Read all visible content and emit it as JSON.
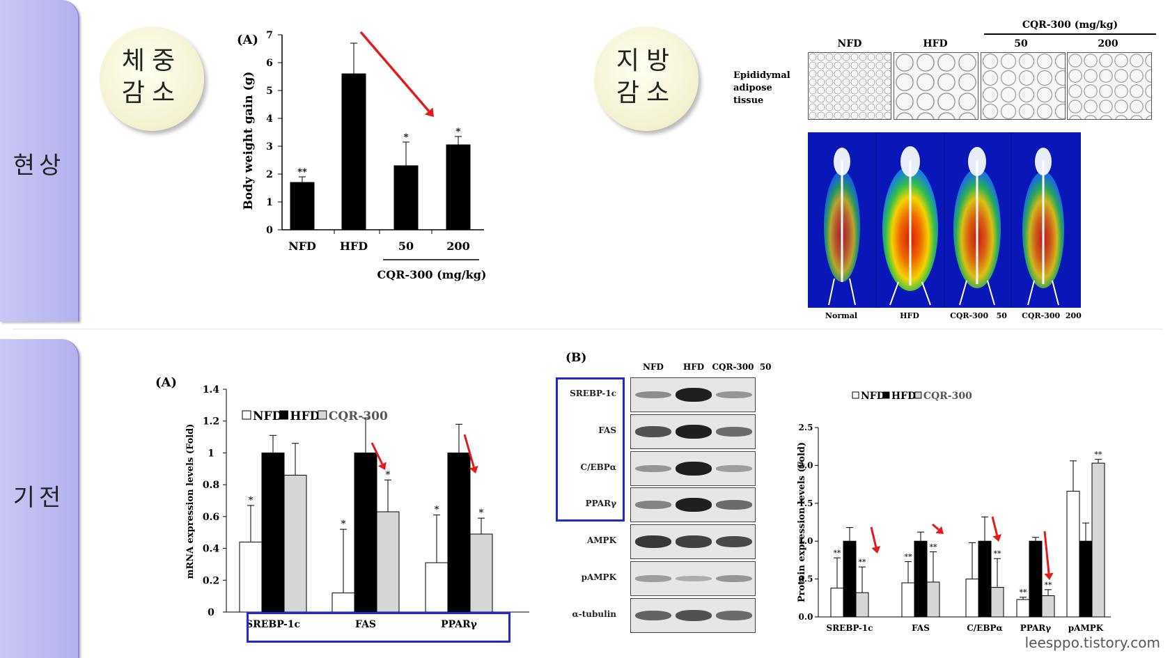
{
  "sections": {
    "phenomenon": "현상",
    "mechanism": "기전"
  },
  "circles": {
    "weight_loss": {
      "line1": "체중",
      "line2": "감소"
    },
    "fat_loss": {
      "line1": "지방",
      "line2": "감소"
    }
  },
  "weight_chart": {
    "panel_label": "(A)",
    "ylabel": "Body weight gain (g)",
    "group_label": "CQR-300 (mg/kg)",
    "yticks": [
      "0",
      "1",
      "2",
      "3",
      "4",
      "5",
      "6",
      "7"
    ]
  },
  "histology": {
    "group_label": "CQR-300 (mg/kg)",
    "columns": [
      "NFD",
      "HFD",
      "50",
      "200"
    ],
    "tissue_label": [
      "Epididymal",
      "adipose",
      "tissue"
    ],
    "ct_labels": [
      "Normal",
      "HFD",
      "CQR-300   50",
      "CQR-300  200"
    ]
  },
  "mrna_chart": {
    "panel_label": "(A)",
    "ylabel": "mRNA expression levels (Fold)",
    "legend": [
      "NFD",
      "HFD",
      "CQR-300"
    ],
    "yticks": [
      "0",
      "0.2",
      "0.4",
      "0.6",
      "0.8",
      "1",
      "1.2",
      "1.4"
    ]
  },
  "western": {
    "panel_label": "(B)",
    "headers": [
      "NFD",
      "HFD",
      "CQR-300  50"
    ],
    "rows": [
      "SREBP-1c",
      "FAS",
      "C/EBPα",
      "PPARγ",
      "AMPK",
      "pAMPK",
      "α-tubulin"
    ]
  },
  "protein_chart": {
    "ylabel": "Protein expression levels (Fold)",
    "legend": [
      "NFD",
      "HFD",
      "CQR-300"
    ],
    "yticks": [
      "0.0",
      "0.5",
      "1.0",
      "1.5",
      "2.0",
      "2.5"
    ]
  },
  "watermark": "leesppo.tistory.com",
  "colors": {
    "tab": "#b9b7f0",
    "highlight_box": "#1e2bd1",
    "arrow": "#e31b1b",
    "hfd_bar": "#000000",
    "cqr_bar": "#d6d6d6"
  },
  "chart_data": [
    {
      "type": "bar",
      "categories": [
        "NFD",
        "HFD",
        "50",
        "200"
      ],
      "values": [
        1.7,
        5.6,
        2.3,
        3.05
      ],
      "errors": [
        0.2,
        1.1,
        0.85,
        0.3
      ],
      "significance": [
        "**",
        "",
        "*",
        "*"
      ],
      "ylabel": "Body weight gain (g)",
      "ylim": [
        0,
        7
      ]
    },
    {
      "type": "bar",
      "categories": [
        "SREBP-1c",
        "FAS",
        "PPARγ"
      ],
      "series": [
        {
          "name": "NFD",
          "values": [
            0.44,
            0.12,
            0.31
          ],
          "errors": [
            0.23,
            0.4,
            0.3
          ],
          "significance": [
            "*",
            "*",
            "*"
          ]
        },
        {
          "name": "HFD",
          "values": [
            1.0,
            1.0,
            1.0
          ],
          "errors": [
            0.11,
            0.22,
            0.18
          ],
          "significance": [
            "",
            "",
            ""
          ]
        },
        {
          "name": "CQR-300",
          "values": [
            0.86,
            0.63,
            0.49
          ],
          "errors": [
            0.2,
            0.2,
            0.1
          ],
          "significance": [
            "",
            "*",
            "*"
          ]
        }
      ],
      "ylabel": "mRNA expression levels (Fold)",
      "ylim": [
        0,
        1.4
      ]
    },
    {
      "type": "bar",
      "categories": [
        "SREBP-1c",
        "FAS",
        "C/EBPα",
        "PPARγ",
        "pAMPK"
      ],
      "series": [
        {
          "name": "NFD",
          "values": [
            0.38,
            0.45,
            0.5,
            0.23,
            1.66
          ],
          "errors": [
            0.4,
            0.28,
            0.48,
            0.03,
            0.4
          ],
          "significance": [
            "**",
            "**",
            "",
            "**",
            ""
          ]
        },
        {
          "name": "HFD",
          "values": [
            1.0,
            1.0,
            1.0,
            1.0,
            1.0
          ],
          "errors": [
            0.18,
            0.12,
            0.32,
            0.05,
            0.24
          ],
          "significance": [
            "",
            "",
            "",
            "",
            ""
          ]
        },
        {
          "name": "CQR-300",
          "values": [
            0.32,
            0.46,
            0.39,
            0.28,
            2.03
          ],
          "errors": [
            0.34,
            0.4,
            0.38,
            0.08,
            0.05
          ],
          "significance": [
            "**",
            "**",
            "**",
            "**",
            "**"
          ]
        }
      ],
      "ylabel": "Protein expression levels (Fold)",
      "ylim": [
        0,
        2.5
      ]
    }
  ]
}
